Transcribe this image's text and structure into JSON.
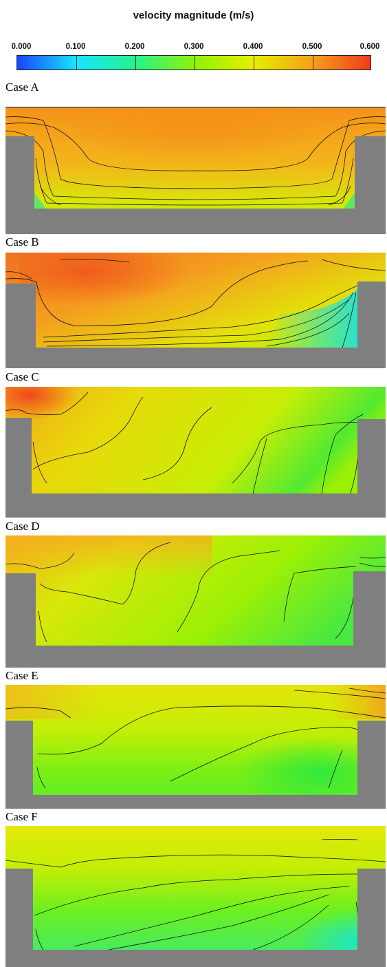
{
  "legend": {
    "title": "velocity magnitude (m/s)",
    "ticks": [
      "0.000",
      "0.100",
      "0.200",
      "0.300",
      "0.400",
      "0.500",
      "0.600"
    ],
    "colorbar_colors": [
      "#1844ff",
      "#19e5ff",
      "#26f28c",
      "#8cf30a",
      "#e4f000",
      "#f5a21c",
      "#f03a1c"
    ]
  },
  "solid_color": "#7f7f7f",
  "panels": [
    {
      "id": "A",
      "label": "Case A"
    },
    {
      "id": "B",
      "label": "Case B"
    },
    {
      "id": "C",
      "label": "Case C"
    },
    {
      "id": "D",
      "label": "Case D"
    },
    {
      "id": "E",
      "label": "Case E"
    },
    {
      "id": "F",
      "label": "Case F"
    }
  ]
}
